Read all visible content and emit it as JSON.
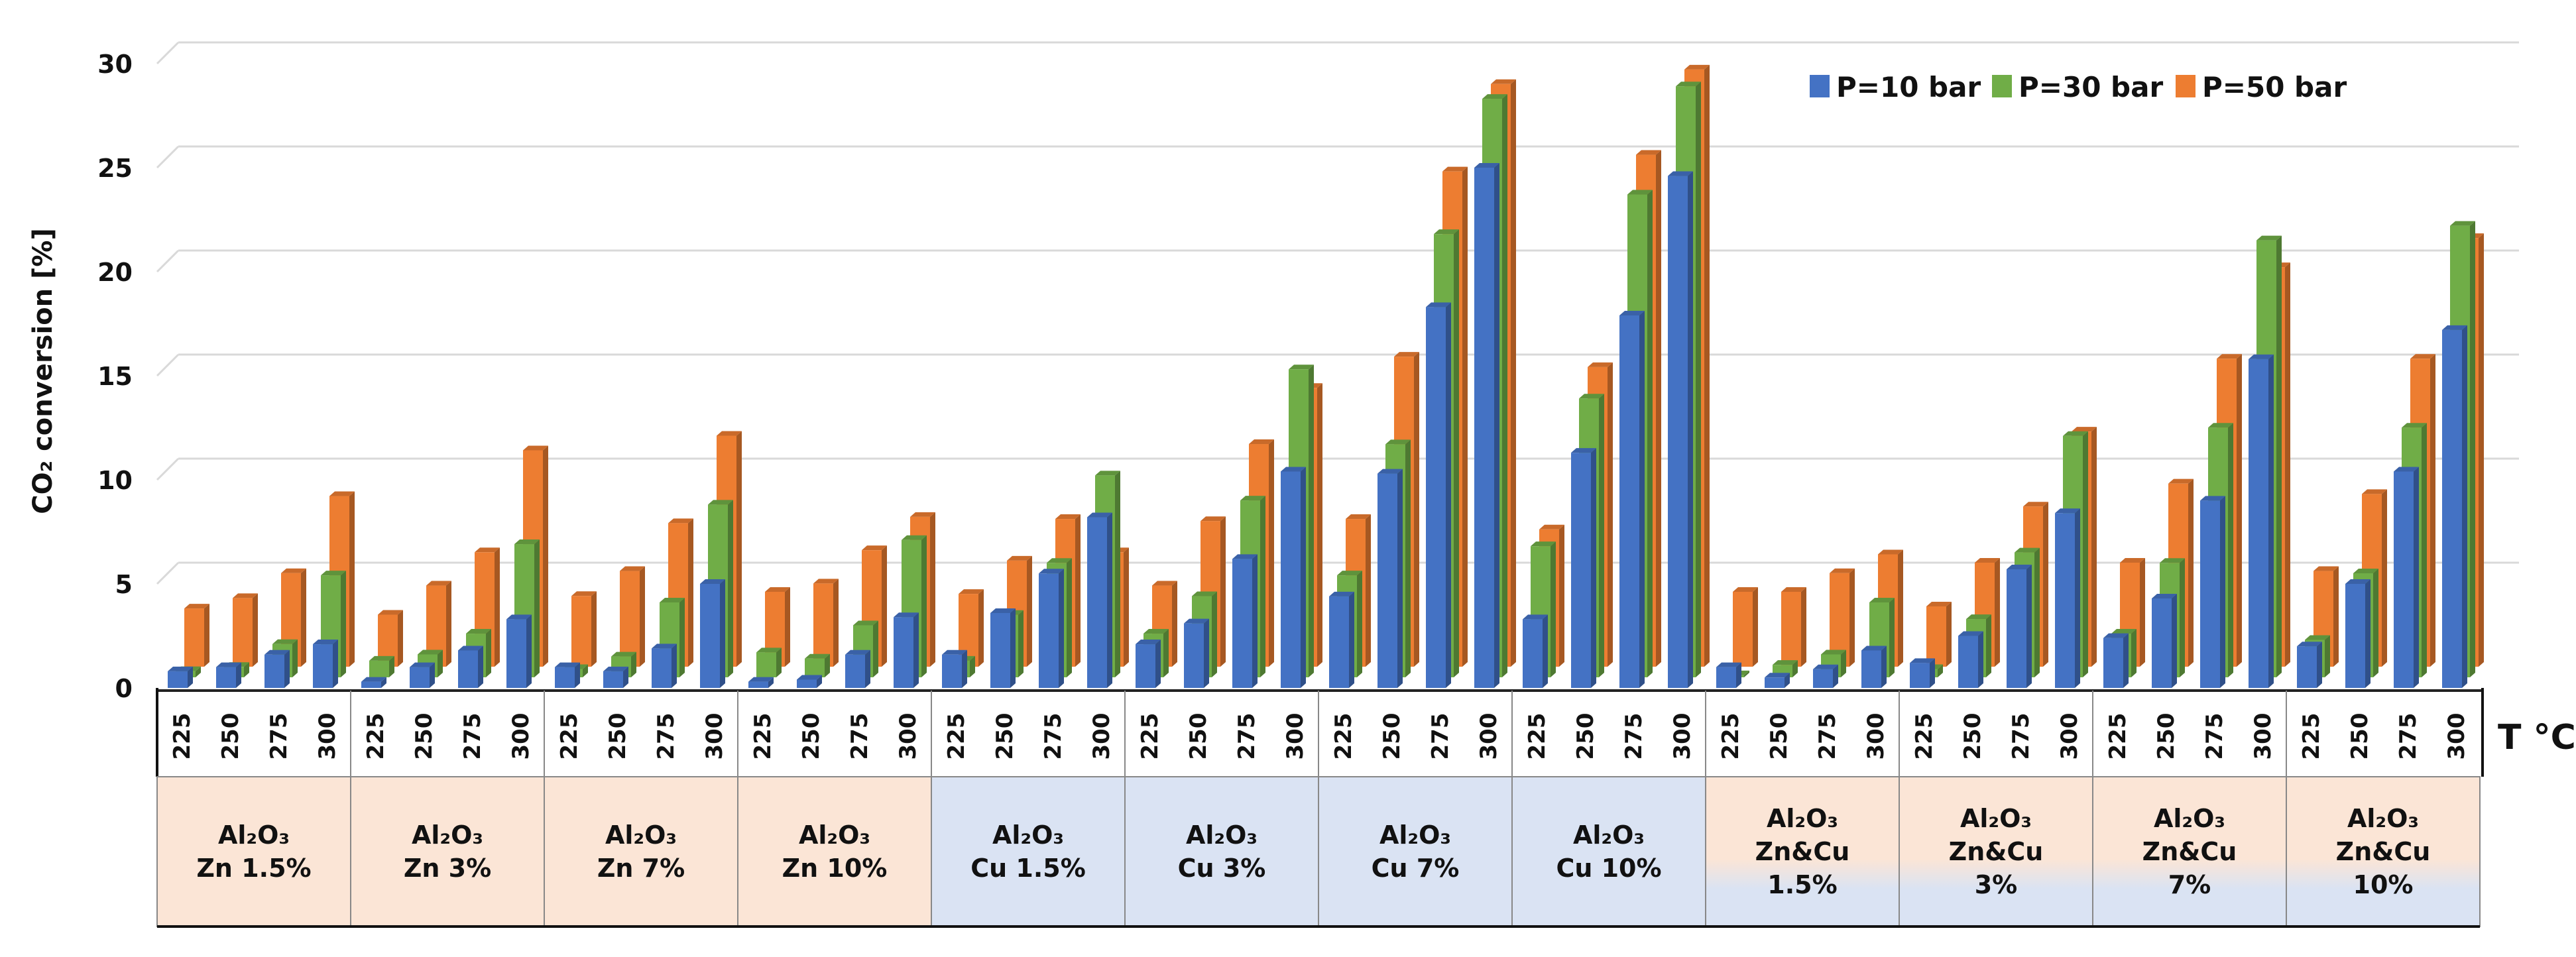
{
  "chart_data": {
    "type": "bar",
    "title": "",
    "ylabel": "CO₂ conversion [%]",
    "xlabel": "T °C",
    "ylim": [
      0,
      30
    ],
    "yticks": [
      "0",
      "5",
      "10",
      "15",
      "20",
      "25",
      "30"
    ],
    "grid": true,
    "legend_position": "top-right",
    "temperatures": [
      "225",
      "250",
      "275",
      "300"
    ],
    "groups": [
      {
        "lines": [
          "Al₂O₃",
          "Zn 1.5%"
        ],
        "fill": "zn"
      },
      {
        "lines": [
          "Al₂O₃",
          "Zn 3%"
        ],
        "fill": "zn"
      },
      {
        "lines": [
          "Al₂O₃",
          "Zn 7%"
        ],
        "fill": "zn"
      },
      {
        "lines": [
          "Al₂O₃",
          "Zn 10%"
        ],
        "fill": "zn"
      },
      {
        "lines": [
          "Al₂O₃",
          "Cu 1.5%"
        ],
        "fill": "cu"
      },
      {
        "lines": [
          "Al₂O₃",
          "Cu 3%"
        ],
        "fill": "cu"
      },
      {
        "lines": [
          "Al₂O₃",
          "Cu 7%"
        ],
        "fill": "cu"
      },
      {
        "lines": [
          "Al₂O₃",
          "Cu 10%"
        ],
        "fill": "cu"
      },
      {
        "lines": [
          "Al₂O₃",
          "Zn&Cu",
          "1.5%"
        ],
        "fill": "mix"
      },
      {
        "lines": [
          "Al₂O₃",
          "Zn&Cu",
          "3%"
        ],
        "fill": "mix"
      },
      {
        "lines": [
          "Al₂O₃",
          "Zn&Cu",
          "7%"
        ],
        "fill": "mix"
      },
      {
        "lines": [
          "Al₂O₃",
          "Zn&Cu",
          "10%"
        ],
        "fill": "mix"
      }
    ],
    "series": [
      {
        "name": "P=10 bar",
        "color": "#4472c4",
        "values": [
          0.8,
          1.0,
          1.6,
          2.1,
          0.3,
          1.0,
          1.8,
          3.3,
          1.0,
          0.8,
          1.9,
          5.0,
          0.3,
          0.4,
          1.6,
          3.4,
          1.6,
          3.6,
          5.5,
          8.2,
          2.1,
          3.1,
          6.2,
          10.4,
          4.4,
          10.3,
          18.3,
          25.0,
          3.3,
          11.3,
          17.9,
          24.6,
          1.0,
          0.5,
          0.9,
          1.8,
          1.2,
          2.5,
          5.7,
          8.4,
          2.4,
          4.3,
          9.0,
          15.8,
          2.0,
          5.0,
          10.4,
          17.2
        ]
      },
      {
        "name": "P=30 bar",
        "color": "#70ad47",
        "values": [
          0.3,
          0.5,
          1.6,
          4.9,
          0.8,
          1.1,
          2.1,
          6.4,
          0.4,
          1.0,
          3.6,
          8.3,
          1.2,
          0.9,
          2.5,
          6.6,
          0.8,
          3.0,
          5.5,
          9.7,
          2.1,
          3.9,
          8.5,
          14.8,
          4.9,
          11.2,
          21.3,
          27.8,
          6.3,
          13.4,
          23.2,
          28.4,
          0.1,
          0.6,
          1.1,
          3.6,
          0.4,
          2.8,
          6.0,
          11.6,
          2.1,
          5.5,
          12.0,
          21.0,
          1.8,
          5.0,
          12.0,
          21.7
        ]
      },
      {
        "name": "P=50 bar",
        "color": "#ed7d31",
        "values": [
          2.8,
          3.3,
          4.5,
          8.2,
          2.5,
          3.9,
          5.5,
          10.4,
          3.4,
          4.6,
          6.9,
          11.1,
          3.6,
          4.0,
          5.6,
          7.2,
          3.5,
          5.1,
          7.1,
          5.5,
          3.9,
          7.0,
          10.7,
          13.4,
          7.1,
          14.9,
          23.8,
          28.0,
          6.6,
          14.4,
          24.6,
          28.7,
          3.6,
          3.6,
          4.5,
          5.4,
          2.9,
          5.0,
          7.7,
          11.3,
          5.0,
          8.8,
          14.8,
          19.2,
          4.6,
          8.3,
          14.8,
          20.6
        ]
      }
    ],
    "category_fills": {
      "zn": "#fbe5d6",
      "cu": "#dae3f3"
    }
  }
}
